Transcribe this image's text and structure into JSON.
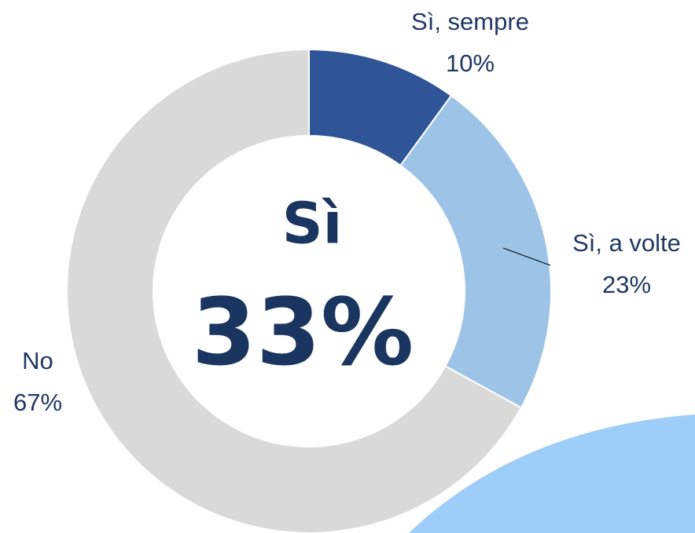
{
  "chart_data": {
    "type": "donut",
    "categories": [
      "Sì, sempre",
      "Sì, a volte",
      "No"
    ],
    "values": [
      10,
      23,
      67
    ],
    "value_labels": [
      "10%",
      "23%",
      "67%"
    ],
    "colors": [
      "#2f5597",
      "#9dc3e6",
      "#d9d9d9"
    ],
    "center_title": "Sì",
    "center_text": "33%"
  }
}
